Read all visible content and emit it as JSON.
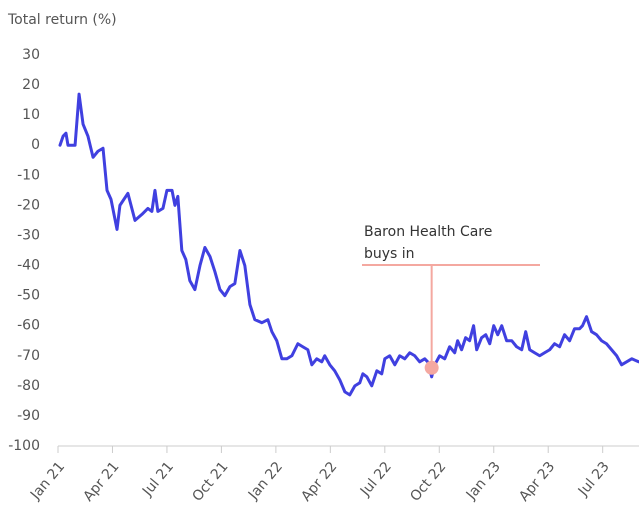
{
  "chart_data": {
    "type": "line",
    "title": "Total return (%)",
    "xlim": [
      0,
      32
    ],
    "xticks": [
      {
        "value": 0,
        "label": "Jan 21"
      },
      {
        "value": 3,
        "label": "Apr 21"
      },
      {
        "value": 6,
        "label": "Jul 21"
      },
      {
        "value": 9,
        "label": "Oct 21"
      },
      {
        "value": 12,
        "label": "Jan 22"
      },
      {
        "value": 15,
        "label": "Apr 22"
      },
      {
        "value": 18,
        "label": "Jul 22"
      },
      {
        "value": 21,
        "label": "Oct 22"
      },
      {
        "value": 24,
        "label": "Jan 23"
      },
      {
        "value": 27,
        "label": "Apr 23"
      },
      {
        "value": 30,
        "label": "Jul 23"
      }
    ],
    "ylim": [
      -100,
      30
    ],
    "yticks": [
      30,
      20,
      10,
      0,
      -10,
      -20,
      -30,
      -40,
      -50,
      -60,
      -70,
      -80,
      -90,
      -100
    ],
    "x": [
      0.11,
      0.28,
      0.44,
      0.55,
      0.94,
      1.16,
      1.38,
      1.65,
      1.93,
      2.2,
      2.48,
      2.7,
      2.92,
      3.25,
      3.41,
      3.85,
      4.24,
      4.62,
      4.95,
      5.17,
      5.34,
      5.5,
      5.78,
      6.0,
      6.28,
      6.44,
      6.6,
      6.82,
      7.04,
      7.26,
      7.54,
      7.82,
      8.09,
      8.37,
      8.64,
      8.92,
      9.19,
      9.47,
      9.74,
      10.02,
      10.29,
      10.57,
      10.84,
      11.23,
      11.56,
      11.78,
      12.05,
      12.33,
      12.6,
      12.88,
      13.21,
      13.48,
      13.76,
      13.98,
      14.25,
      14.53,
      14.69,
      14.97,
      15.24,
      15.52,
      15.8,
      16.07,
      16.35,
      16.62,
      16.79,
      17.01,
      17.28,
      17.56,
      17.83,
      18.0,
      18.27,
      18.55,
      18.82,
      19.1,
      19.37,
      19.65,
      19.92,
      20.2,
      20.36,
      20.58,
      20.75,
      21.02,
      21.3,
      21.57,
      21.85,
      22.01,
      22.23,
      22.45,
      22.67,
      22.89,
      23.06,
      23.33,
      23.56,
      23.78,
      24.0,
      24.22,
      24.44,
      24.71,
      24.99,
      25.26,
      25.54,
      25.76,
      25.98,
      26.25,
      26.53,
      26.8,
      27.08,
      27.35,
      27.63,
      27.9,
      28.18,
      28.45,
      28.73,
      28.89,
      29.11,
      29.39,
      29.66,
      29.94,
      30.21,
      30.49,
      30.77,
      31.04,
      31.32,
      31.6,
      31.98
    ],
    "series": [
      {
        "name": "Baron Health Care",
        "color": "#4040e0",
        "values": [
          0,
          3,
          4,
          0,
          0,
          17,
          7,
          3,
          -4,
          -2,
          -1,
          -15,
          -18,
          -28,
          -20,
          -16,
          -25,
          -23,
          -21,
          -22,
          -15,
          -22,
          -21,
          -15,
          -15,
          -20,
          -17,
          -35,
          -38,
          -45,
          -48,
          -40,
          -34,
          -37,
          -42,
          -48,
          -50,
          -47,
          -46,
          -35,
          -40,
          -53,
          -58,
          -59,
          -58,
          -62,
          -65,
          -71,
          -71,
          -70,
          -66,
          -67,
          -68,
          -73,
          -71,
          -72,
          -70,
          -73,
          -75,
          -78,
          -82,
          -83,
          -80,
          -79,
          -76,
          -77,
          -80,
          -75,
          -76,
          -71,
          -70,
          -73,
          -70,
          -71,
          -69,
          -70,
          -72,
          -71,
          -72,
          -77,
          -73,
          -70,
          -71,
          -67,
          -69,
          -65,
          -68,
          -64,
          -65,
          -60,
          -68,
          -64,
          -63,
          -66,
          -60,
          -63,
          -60,
          -65,
          -65,
          -67,
          -68,
          -62,
          -68,
          -69,
          -70,
          -69,
          -68,
          -66,
          -67,
          -63,
          -65,
          -61,
          -61,
          -60,
          -57,
          -62,
          -63,
          -65,
          -66,
          -68,
          -70,
          -73,
          -72,
          -71,
          -72
        ]
      }
    ],
    "annotations": [
      {
        "text": [
          "Baron Health Care",
          "buys in"
        ],
        "x": 20.58,
        "y": -74,
        "color": "#f4a8a0"
      }
    ]
  }
}
